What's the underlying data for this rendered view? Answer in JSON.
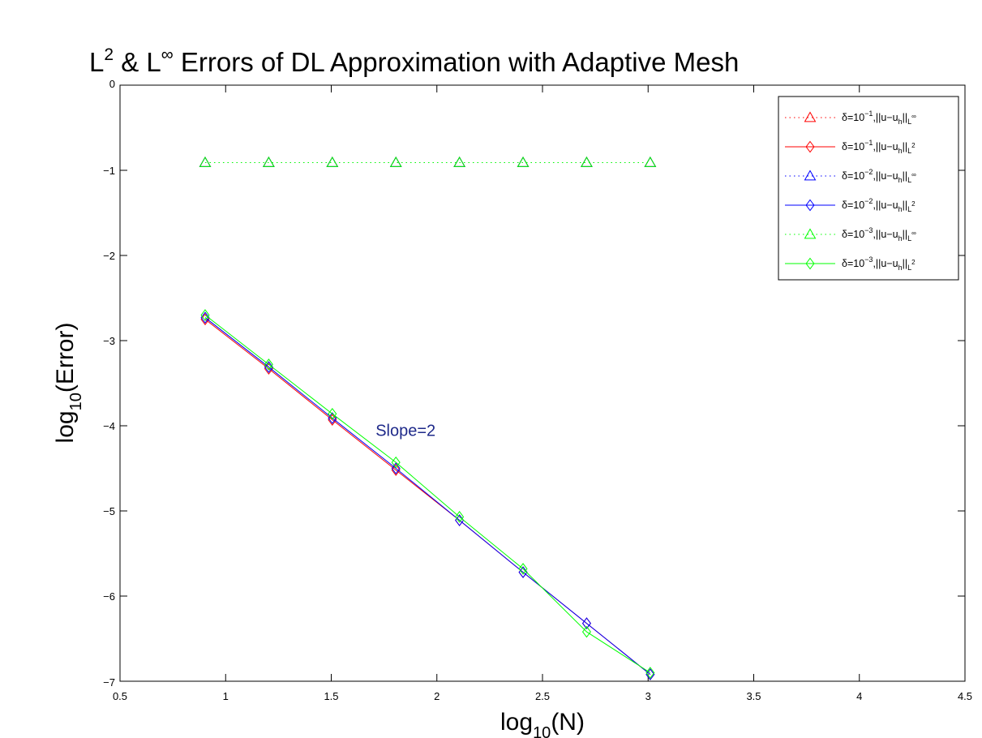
{
  "chart_data": {
    "type": "line",
    "title": {
      "parts": [
        {
          "text": "L"
        },
        {
          "text": "2",
          "sup": true
        },
        {
          "text": " & L"
        },
        {
          "text": "∞",
          "sup": true
        },
        {
          "text": " Errors of DL Approximation with Adaptive Mesh"
        }
      ]
    },
    "xlabel": {
      "main": "log",
      "sub": "10",
      "tail": "(N)"
    },
    "ylabel": {
      "main": "log",
      "sub": "10",
      "tail": "(Error)"
    },
    "xlim": [
      0.5,
      4.5
    ],
    "ylim": [
      -7,
      0
    ],
    "xticks": [
      0.5,
      1,
      1.5,
      2,
      2.5,
      3,
      3.5,
      4,
      4.5
    ],
    "xtick_labels": [
      "0.5",
      "1",
      "1.5",
      "2",
      "2.5",
      "3",
      "3.5",
      "4",
      "4.5"
    ],
    "yticks": [
      0,
      -1,
      -2,
      -3,
      -4,
      -5,
      -6,
      -7
    ],
    "ytick_labels": [
      "0",
      "−1",
      "−2",
      "−3",
      "−4",
      "−5",
      "−6",
      "−7"
    ],
    "grid": false,
    "legend_position": "top-right",
    "x": [
      0.903,
      1.204,
      1.505,
      1.806,
      2.107,
      2.408,
      2.709,
      3.01
    ],
    "series": [
      {
        "style": "dotted",
        "marker": "triangle",
        "color": "#ff0000",
        "legend": {
          "pre": "δ=10",
          "exp": "−1",
          "mid": ",||u−u",
          "sub": "h",
          "post": "||",
          "sub2": "L",
          "sup2": "∞"
        },
        "values": [
          -0.91,
          -0.91,
          -0.91,
          -0.91,
          -0.91,
          -0.91,
          -0.91,
          -0.91
        ]
      },
      {
        "style": "solid",
        "marker": "diamond",
        "color": "#ff0000",
        "legend": {
          "pre": "δ=10",
          "exp": "−1",
          "mid": ",||u−u",
          "sub": "h",
          "post": "||",
          "sub2": "L",
          "sup2": "2"
        },
        "values": [
          -2.75,
          -3.33,
          -3.93,
          -4.52,
          -5.11,
          -5.72,
          -6.32,
          -6.92
        ]
      },
      {
        "style": "dotted",
        "marker": "triangle",
        "color": "#0000ff",
        "legend": {
          "pre": "δ=10",
          "exp": "−2",
          "mid": ",||u−u",
          "sub": "h",
          "post": "||",
          "sub2": "L",
          "sup2": "∞"
        },
        "values": [
          -0.91,
          -0.91,
          -0.91,
          -0.91,
          -0.91,
          -0.91,
          -0.91,
          -0.91
        ]
      },
      {
        "style": "solid",
        "marker": "diamond",
        "color": "#0000ff",
        "legend": {
          "pre": "δ=10",
          "exp": "−2",
          "mid": ",||u−u",
          "sub": "h",
          "post": "||",
          "sub2": "L",
          "sup2": "2"
        },
        "values": [
          -2.73,
          -3.31,
          -3.91,
          -4.5,
          -5.11,
          -5.72,
          -6.32,
          -6.92
        ]
      },
      {
        "style": "dotted",
        "marker": "triangle",
        "color": "#00ff00",
        "legend": {
          "pre": "δ=10",
          "exp": "−3",
          "mid": ",||u−u",
          "sub": "h",
          "post": "||",
          "sub2": "L",
          "sup2": "∞"
        },
        "values": [
          -0.91,
          -0.91,
          -0.91,
          -0.91,
          -0.91,
          -0.91,
          -0.91,
          -0.91
        ]
      },
      {
        "style": "solid",
        "marker": "diamond",
        "color": "#00ff00",
        "legend": {
          "pre": "δ=10",
          "exp": "−3",
          "mid": ",||u−u",
          "sub": "h",
          "post": "||",
          "sub2": "L",
          "sup2": "2"
        },
        "values": [
          -2.7,
          -3.28,
          -3.86,
          -4.43,
          -5.07,
          -5.68,
          -6.42,
          -6.9
        ]
      }
    ],
    "annotations": [
      {
        "text": "Slope=2",
        "x": 1.71,
        "y": -4.05
      }
    ]
  }
}
